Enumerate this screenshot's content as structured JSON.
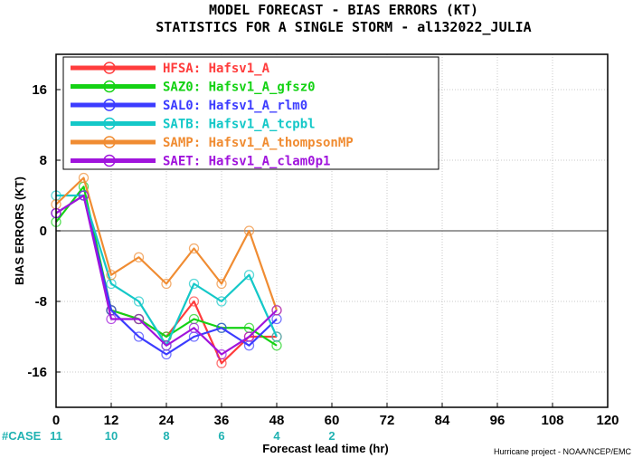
{
  "title": {
    "line1": "MODEL FORECAST - BIAS ERRORS (KT)",
    "line2": "STATISTICS FOR A SINGLE STORM - al132022_JULIA"
  },
  "case_label": "#CASE",
  "credit": "Hurricane project - NOAA/NCEP/EMC",
  "chart_data": {
    "type": "line",
    "xlabel": "Forecast lead time (hr)",
    "ylabel": "BIAS ERRORS (KT)",
    "xlim": [
      0,
      120
    ],
    "ylim": [
      -20,
      20
    ],
    "xticks": [
      0,
      12,
      24,
      36,
      48,
      60,
      72,
      84,
      96,
      108,
      120
    ],
    "yticks": [
      -16,
      -8,
      0,
      8,
      16
    ],
    "grid": true,
    "legend_position": "top-left",
    "cases": [
      {
        "x": 0,
        "n": "11"
      },
      {
        "x": 12,
        "n": "10"
      },
      {
        "x": 24,
        "n": "8"
      },
      {
        "x": 36,
        "n": "6"
      },
      {
        "x": 48,
        "n": "4"
      },
      {
        "x": 60,
        "n": "2"
      }
    ],
    "x": [
      0,
      6,
      12,
      18,
      24,
      30,
      36,
      42,
      48
    ],
    "series": [
      {
        "name": "HFSA: Hafsv1_A",
        "color": "#ff3c3c",
        "values": [
          2,
          4,
          -9,
          -10,
          -12,
          -8,
          -15,
          -12,
          -12
        ]
      },
      {
        "name": "SAZ0: Hafsv1_A_gfsz0",
        "color": "#14d214",
        "values": [
          1,
          5,
          -9,
          -10,
          -12,
          -10,
          -11,
          -11,
          -13
        ]
      },
      {
        "name": "SAL0: Hafsv1_A_rlm0",
        "color": "#3c3cff",
        "values": [
          2,
          4,
          -9,
          -12,
          -14,
          -12,
          -11,
          -13,
          -10
        ]
      },
      {
        "name": "SATB: Hafsv1_A_tcpbl",
        "color": "#14c8c8",
        "values": [
          4,
          4,
          -6,
          -8,
          -13,
          -6,
          -8,
          -5,
          -12
        ]
      },
      {
        "name": "SAMP: Hafsv1_A_thompsonMP",
        "color": "#f08c32",
        "values": [
          3,
          6,
          -5,
          -3,
          -6,
          -2,
          -6,
          0,
          -9
        ]
      },
      {
        "name": "SAET: Hafsv1_A_clam0p1",
        "color": "#a014dc",
        "values": [
          2,
          4,
          -10,
          -10,
          -13,
          -11,
          -14,
          -12,
          -9
        ]
      }
    ]
  }
}
